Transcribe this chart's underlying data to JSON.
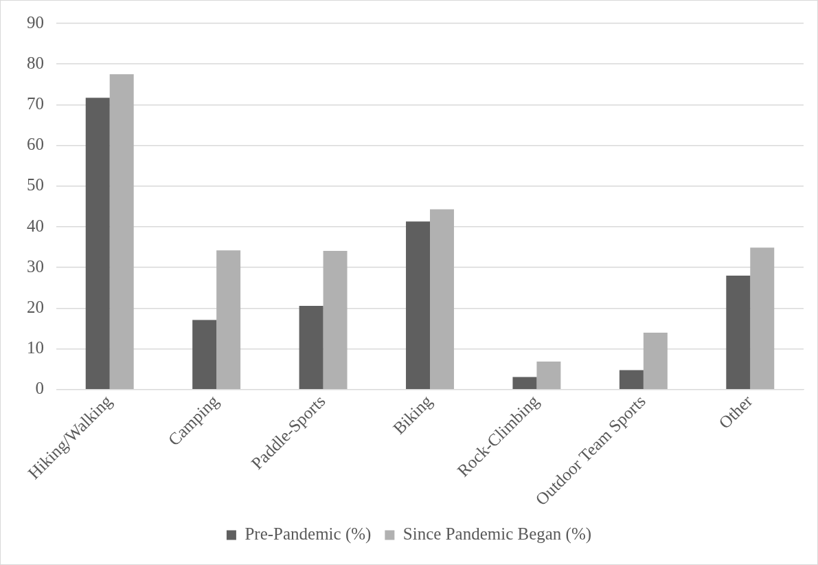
{
  "chart_data": {
    "type": "bar",
    "categories": [
      "Hiking/Walking",
      "Camping",
      "Paddle-Sports",
      "Biking",
      "Rock-Climbing",
      "Outdoor Team Sports",
      "Other"
    ],
    "series": [
      {
        "name": "Pre-Pandemic (%)",
        "color": "#5f5f5f",
        "values": [
          71.7,
          17.1,
          20.6,
          41.3,
          3.1,
          4.8,
          28.0
        ]
      },
      {
        "name": "Since Pandemic Began (%)",
        "color": "#b1b1b1",
        "values": [
          77.5,
          34.2,
          34.1,
          44.3,
          6.9,
          14.0,
          34.9
        ]
      }
    ],
    "ylim": [
      0,
      90
    ],
    "yticks": [
      0,
      10,
      20,
      30,
      40,
      50,
      60,
      70,
      80,
      90
    ],
    "grid": "y",
    "legend": "bottom"
  }
}
